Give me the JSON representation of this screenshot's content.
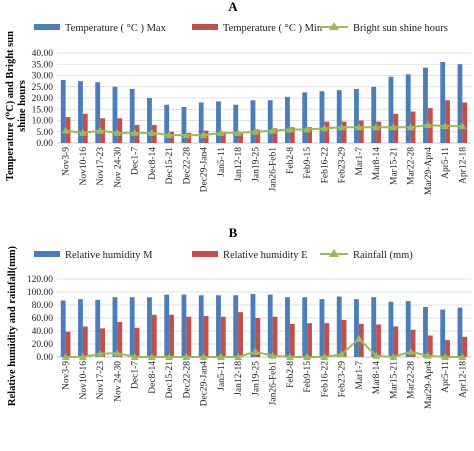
{
  "chart_data": [
    {
      "type": "bar",
      "panel_label": "A",
      "ylabel": "Temperature (⁰C) and Bright sun shine hours",
      "ylabel_lines": [
        "Temperature (⁰C) and Bright sun",
        "shine hours"
      ],
      "ylim": [
        0,
        40
      ],
      "yticks": [
        "0.00",
        "5.00",
        "10.00",
        "15.00",
        "20.00",
        "25.00",
        "30.00",
        "35.00",
        "40.00"
      ],
      "ytick_values": [
        0,
        5,
        10,
        15,
        20,
        25,
        30,
        35,
        40
      ],
      "grid": true,
      "legend_position": "top",
      "categories": [
        "Nov3-9",
        "Nov10-16",
        "Nov17-23",
        "Nov 24-30",
        "Dec1-7",
        "Dec8-14",
        "Dec15-21",
        "Dec22-28",
        "Dec29-Jan4",
        "Jan5-11",
        "Jan12-18",
        "Jan19-25",
        "Jan26-Feb1",
        "Feb2-8",
        "Feb9-15",
        "Feb16-22",
        "Feb23-29",
        "Mar1-7",
        "Mar8-14",
        "Mar15-21",
        "Mar22-28",
        "Mar29-Apr4",
        "Apr5-11",
        "Apr12-18"
      ],
      "series": [
        {
          "name": "Temperature ( °C ) Max",
          "kind": "bar",
          "color": "#4a7ebb",
          "values": [
            28,
            27.5,
            27,
            25,
            24,
            20,
            17,
            16,
            18,
            18.5,
            17,
            19,
            19,
            20.5,
            22.5,
            23,
            23.5,
            24,
            25,
            29.5,
            30.5,
            33.5,
            36,
            35
          ]
        },
        {
          "name": "Temperature ( °C ) Min",
          "kind": "bar",
          "color": "#c0504d",
          "values": [
            11.5,
            13,
            11,
            11,
            8,
            8,
            5,
            4.5,
            5.5,
            5,
            5,
            6,
            6.5,
            7,
            7,
            9.5,
            9.5,
            10,
            9.5,
            13,
            14,
            15.5,
            19,
            18
          ]
        },
        {
          "name": "Bright sun shine hours",
          "kind": "line",
          "color": "#9bbb59",
          "values": [
            5.5,
            4.5,
            5.5,
            4.5,
            4.5,
            4.5,
            3.5,
            3.5,
            3.5,
            4.5,
            4.5,
            5,
            5.5,
            6,
            6,
            6.5,
            7,
            7,
            7,
            7,
            7,
            8,
            7.5,
            7.5
          ]
        }
      ]
    },
    {
      "type": "bar",
      "panel_label": "B",
      "ylabel": "Relative humidity and rainfall(mm)",
      "ylabel_lines": [
        "Relative humidity and rainfall(mm)"
      ],
      "ylim": [
        0,
        120
      ],
      "yticks": [
        "0.00",
        "20.00",
        "40.00",
        "60.00",
        "80.00",
        "100.00",
        "120.00"
      ],
      "ytick_values": [
        0,
        20,
        40,
        60,
        80,
        100,
        120
      ],
      "grid": true,
      "legend_position": "top",
      "categories": [
        "Nov3-9",
        "Nov10-16",
        "Nov17-23",
        "Nov 24-30",
        "Dec1-7",
        "Dec8-14",
        "Dec15-21",
        "Dec22-28",
        "Dec29-Jan4",
        "Jan5-11",
        "Jan12-18",
        "Jan19-25",
        "Jan26-Feb1",
        "Feb2-8",
        "Feb9-15",
        "Feb16-22",
        "Feb23-29",
        "Mar1-7",
        "Mar8-14",
        "Mar15-21",
        "Mar22-28",
        "Mar29-Apr4",
        "Apr5-11",
        "Apr12-18"
      ],
      "series": [
        {
          "name": "Relative humidity M",
          "kind": "bar",
          "color": "#4a7ebb",
          "values": [
            87,
            89,
            88,
            92,
            92,
            92,
            96,
            96,
            95,
            95,
            95,
            97,
            96,
            92,
            92,
            89,
            93,
            89,
            92,
            85,
            86,
            77,
            73,
            76
          ]
        },
        {
          "name": "Relative humidity E",
          "kind": "bar",
          "color": "#c0504d",
          "values": [
            39,
            47,
            44,
            54,
            45,
            65,
            65,
            62,
            63,
            62,
            69,
            60,
            62,
            51,
            52,
            52,
            57,
            51,
            50,
            47,
            42,
            33,
            26,
            31
          ]
        },
        {
          "name": "Rainfall (mm)",
          "kind": "line",
          "color": "#9bbb59",
          "values": [
            0,
            0,
            5,
            6,
            0,
            0,
            0,
            0,
            0,
            0,
            0,
            8,
            2,
            0,
            0,
            0,
            4,
            28,
            2,
            0,
            8,
            2,
            0,
            0
          ]
        }
      ]
    }
  ]
}
